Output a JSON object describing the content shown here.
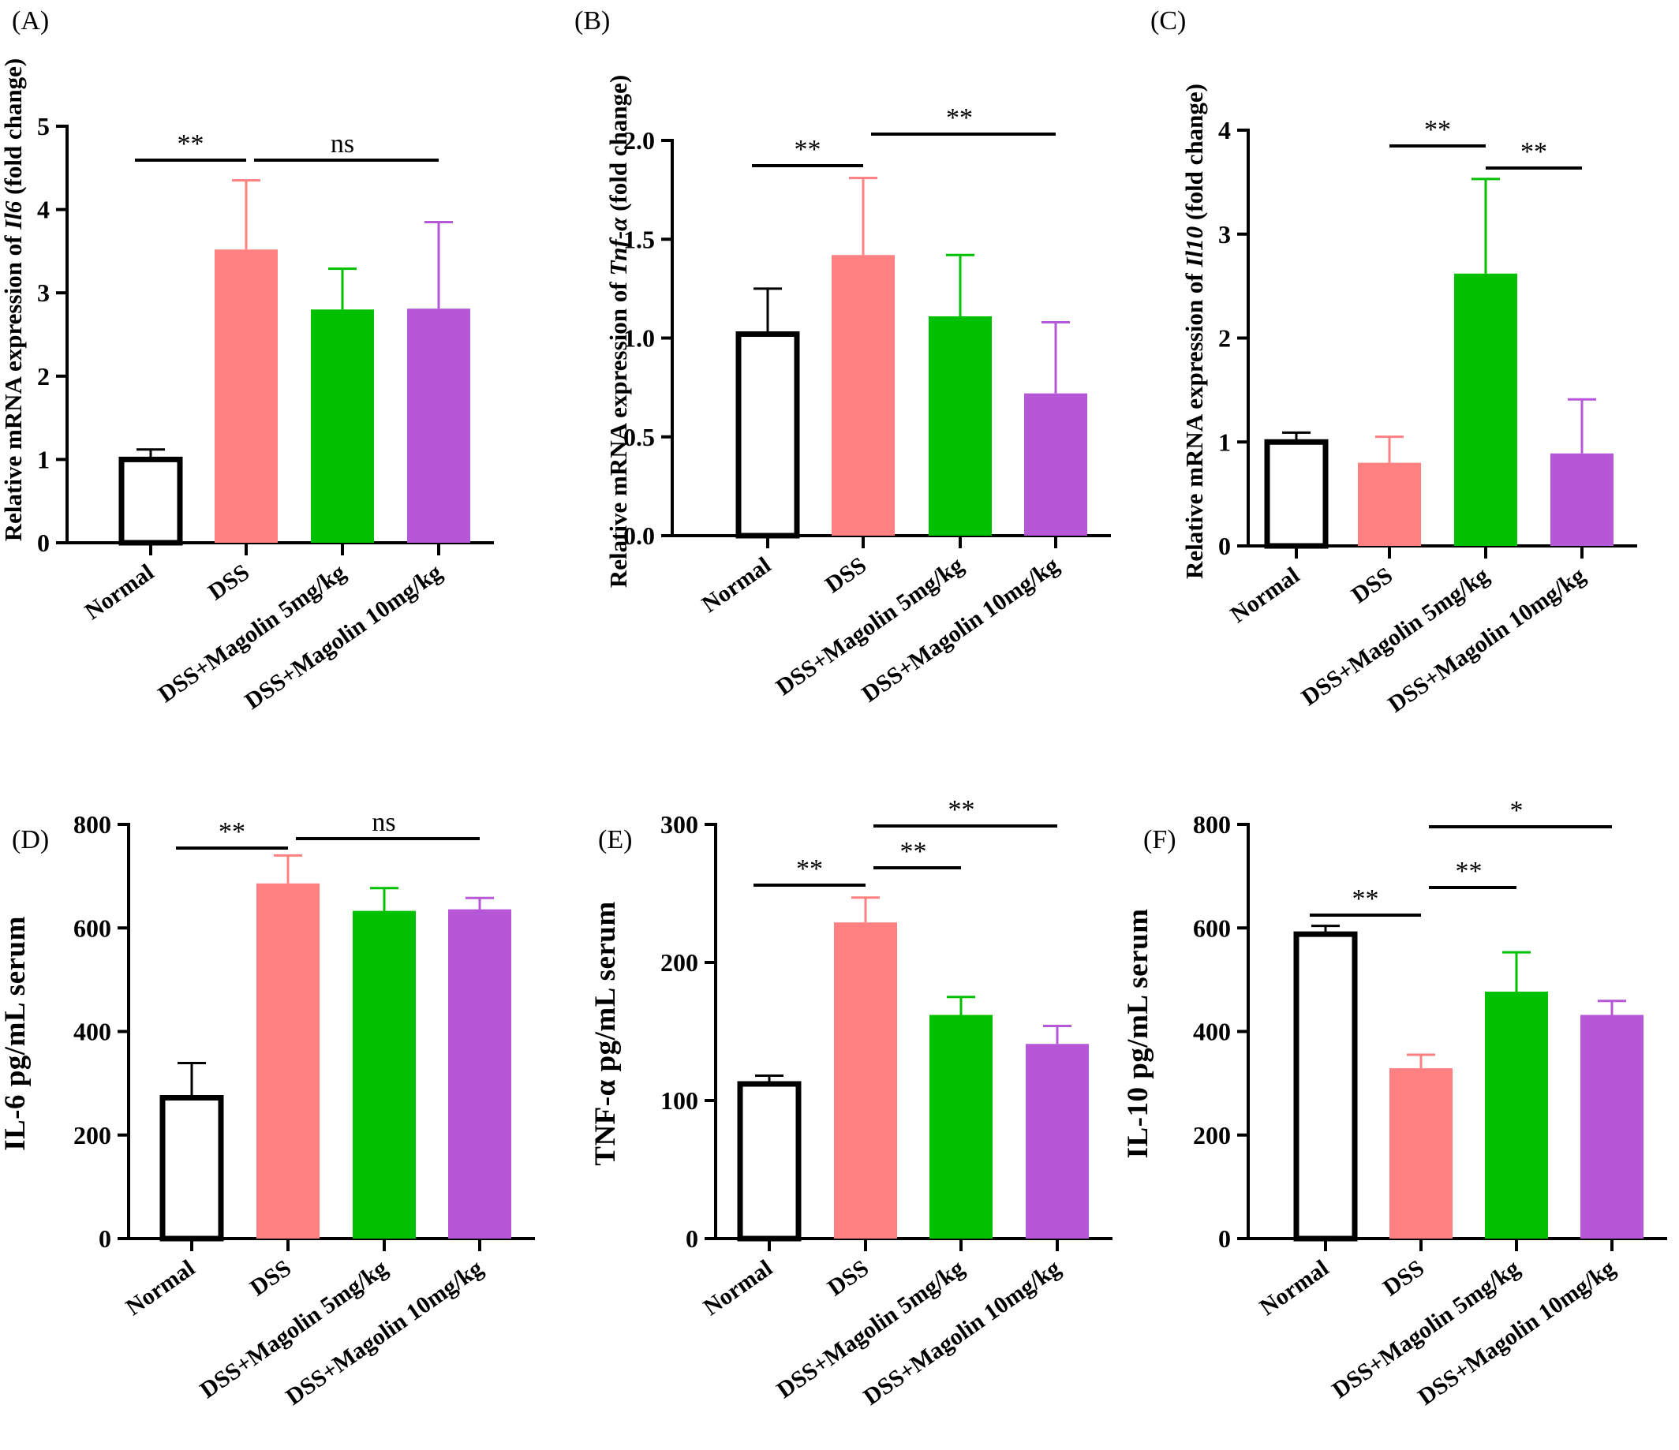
{
  "panels": [
    {
      "letter": "(A)",
      "ylabel_parts": [
        {
          "text": "Relative mRNA expression of ",
          "italic": false
        },
        {
          "text": "Il6",
          "italic": true
        },
        {
          "text": " (fold change)",
          "italic": false
        }
      ],
      "ylim": [
        0,
        5
      ],
      "yticks": [
        "0",
        "1",
        "2",
        "3",
        "4",
        "5"
      ]
    },
    {
      "letter": "(B)",
      "ylabel_parts": [
        {
          "text": "Relative mRNA expression of ",
          "italic": false
        },
        {
          "text": "Tnf-α",
          "italic": true
        },
        {
          "text": " (fold change)",
          "italic": false
        }
      ],
      "ylim": [
        0,
        2
      ],
      "yticks": [
        "0.0",
        "0.5",
        "1.0",
        "1.5",
        "2.0"
      ]
    },
    {
      "letter": "(C)",
      "ylabel_parts": [
        {
          "text": "Relative mRNA expression of ",
          "italic": false
        },
        {
          "text": "Il10",
          "italic": true
        },
        {
          "text": " (fold change)",
          "italic": false
        }
      ],
      "ylim": [
        0,
        4
      ],
      "yticks": [
        "0",
        "1",
        "2",
        "3",
        "4"
      ]
    },
    {
      "letter": "(D)",
      "ylabel_parts": [
        {
          "text": "IL-6 pg/mL serum",
          "italic": false
        }
      ],
      "ylim": [
        0,
        800
      ],
      "yticks": [
        "0",
        "200",
        "400",
        "600",
        "800"
      ]
    },
    {
      "letter": "(E)",
      "ylabel_parts": [
        {
          "text": "TNF-α pg/mL serum",
          "italic": false
        }
      ],
      "ylim": [
        0,
        300
      ],
      "yticks": [
        "0",
        "100",
        "200",
        "300"
      ]
    },
    {
      "letter": "(F)",
      "ylabel_parts": [
        {
          "text": "IL-10 pg/mL serum",
          "italic": false
        }
      ],
      "ylim": [
        0,
        800
      ],
      "yticks": [
        "0",
        "200",
        "400",
        "600",
        "800"
      ]
    }
  ],
  "chart_data": [
    {
      "type": "bar",
      "categories": [
        "Normal",
        "DSS",
        "DSS+Magolin 5mg/kg",
        "DSS+Magolin 10mg/kg"
      ],
      "values": [
        1.0,
        3.52,
        2.8,
        2.81
      ],
      "errors": [
        0.12,
        0.83,
        0.49,
        1.04
      ],
      "ylabel": "Relative mRNA expression of Il6 (fold change)",
      "ylim": [
        0,
        5
      ],
      "significance": [
        {
          "from": 0,
          "to": 1,
          "label": "**"
        },
        {
          "from": 1,
          "to": 3,
          "label": "ns"
        }
      ]
    },
    {
      "type": "bar",
      "categories": [
        "Normal",
        "DSS",
        "DSS+Magolin 5mg/kg",
        "DSS+Magolin 10mg/kg"
      ],
      "values": [
        1.02,
        1.42,
        1.11,
        0.72
      ],
      "errors": [
        0.23,
        0.39,
        0.31,
        0.36
      ],
      "ylabel": "Relative mRNA expression of Tnf-α (fold change)",
      "ylim": [
        0,
        2
      ],
      "significance": [
        {
          "from": 0,
          "to": 1,
          "label": "**"
        },
        {
          "from": 1,
          "to": 3,
          "label": "**"
        }
      ]
    },
    {
      "type": "bar",
      "categories": [
        "Normal",
        "DSS",
        "DSS+Magolin 5mg/kg",
        "DSS+Magolin 10mg/kg"
      ],
      "values": [
        1.0,
        0.8,
        2.62,
        0.89
      ],
      "errors": [
        0.09,
        0.25,
        0.91,
        0.52
      ],
      "ylabel": "Relative mRNA expression of Il10 (fold change)",
      "ylim": [
        0,
        4
      ],
      "significance": [
        {
          "from": 1,
          "to": 2,
          "label": "**"
        },
        {
          "from": 2,
          "to": 3,
          "label": "**"
        }
      ]
    },
    {
      "type": "bar",
      "categories": [
        "Normal",
        "DSS",
        "DSS+Magolin 5mg/kg",
        "DSS+Magolin 10mg/kg"
      ],
      "values": [
        272,
        686,
        633,
        636
      ],
      "errors": [
        67,
        54,
        44,
        22
      ],
      "ylabel": "IL-6 pg/mL serum",
      "ylim": [
        0,
        800
      ],
      "significance": [
        {
          "from": 0,
          "to": 1,
          "label": "**"
        },
        {
          "from": 1,
          "to": 3,
          "label": "ns"
        }
      ]
    },
    {
      "type": "bar",
      "categories": [
        "Normal",
        "DSS",
        "DSS+Magolin 5mg/kg",
        "DSS+Magolin 10mg/kg"
      ],
      "values": [
        112,
        229,
        162,
        141
      ],
      "errors": [
        6,
        18,
        13,
        13
      ],
      "ylabel": "TNF-α pg/mL serum",
      "ylim": [
        0,
        300
      ],
      "significance": [
        {
          "from": 0,
          "to": 1,
          "label": "**"
        },
        {
          "from": 1,
          "to": 2,
          "label": "**"
        },
        {
          "from": 1,
          "to": 3,
          "label": "**"
        }
      ]
    },
    {
      "type": "bar",
      "categories": [
        "Normal",
        "DSS",
        "DSS+Magolin 5mg/kg",
        "DSS+Magolin 10mg/kg"
      ],
      "values": [
        588,
        329,
        477,
        432
      ],
      "errors": [
        16,
        26,
        76,
        27
      ],
      "ylabel": "IL-10 pg/mL serum",
      "ylim": [
        0,
        800
      ],
      "significance": [
        {
          "from": 0,
          "to": 1,
          "label": "**"
        },
        {
          "from": 1,
          "to": 2,
          "label": "**"
        },
        {
          "from": 1,
          "to": 3,
          "label": "*"
        }
      ]
    }
  ],
  "colors": {
    "normal_fill": "#ffffff",
    "normal_edge": "#000000",
    "dss": "#ff8080",
    "magolin_5": "#00c000",
    "magolin_10": "#b657d8",
    "axis": "#000000"
  }
}
